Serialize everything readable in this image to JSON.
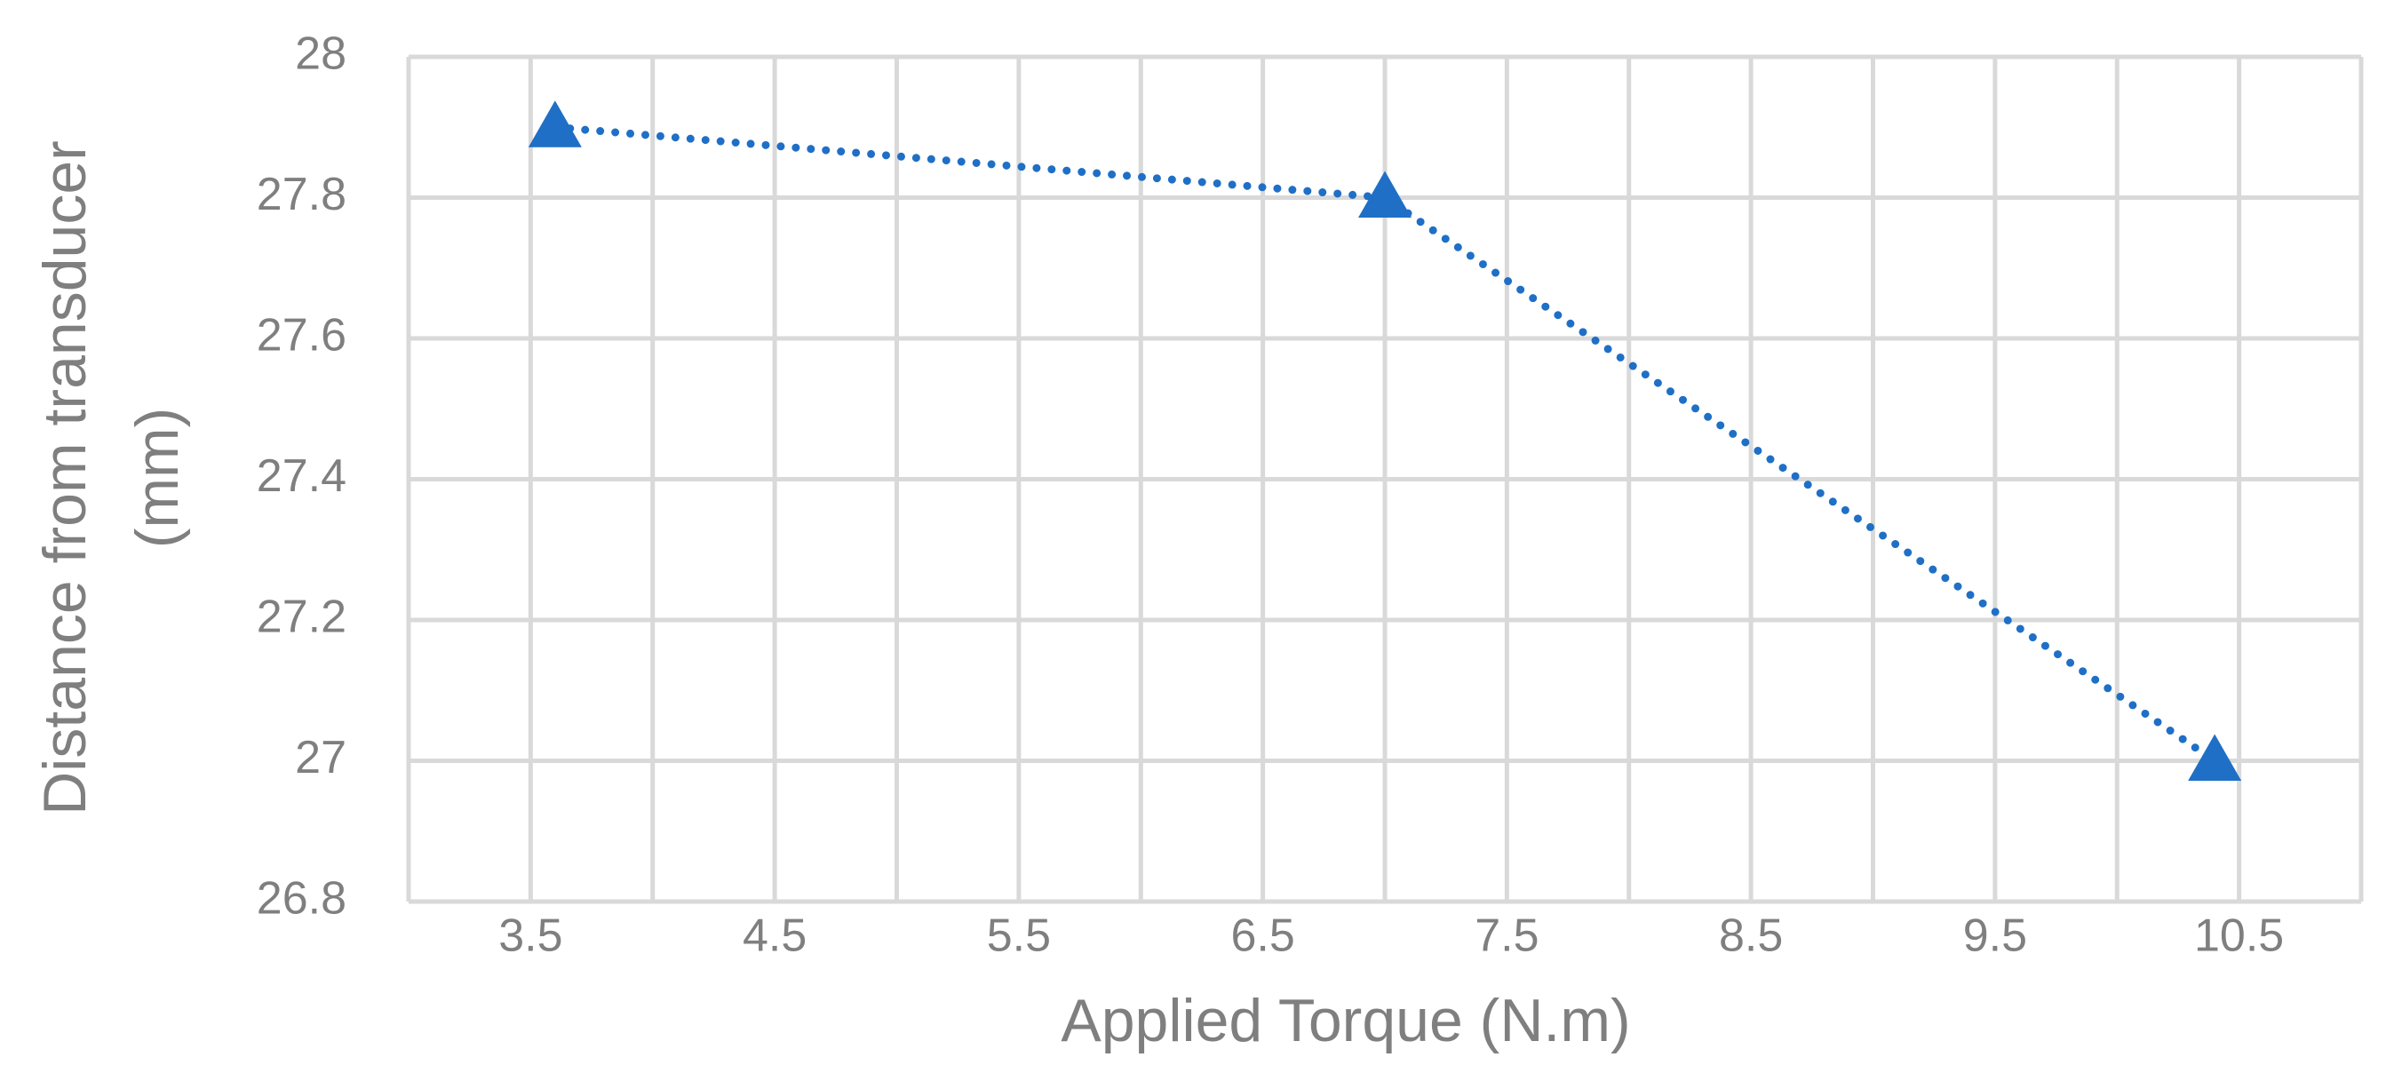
{
  "chart_data": {
    "type": "scatter",
    "xlabel": "Applied Torque (N.m)",
    "ylabel": [
      "Distance  from transducer",
      "(mm)"
    ],
    "x": [
      3.6,
      7.0,
      10.4
    ],
    "series": [
      {
        "color": "#1f6fc6",
        "values": [
          27.9,
          27.8,
          27.0
        ]
      }
    ],
    "xlim": [
      3,
      11
    ],
    "xticks": [
      3.5,
      4.5,
      5.5,
      6.5,
      7.5,
      8.5,
      9.5,
      10.5
    ],
    "ylim": [
      26.8,
      28
    ],
    "yticks": [
      26.8,
      27,
      27.2,
      27.4,
      27.6,
      27.8,
      28
    ],
    "grid": true,
    "x_minor_grid": true,
    "line_style": "dotted",
    "marker": "triangle"
  }
}
